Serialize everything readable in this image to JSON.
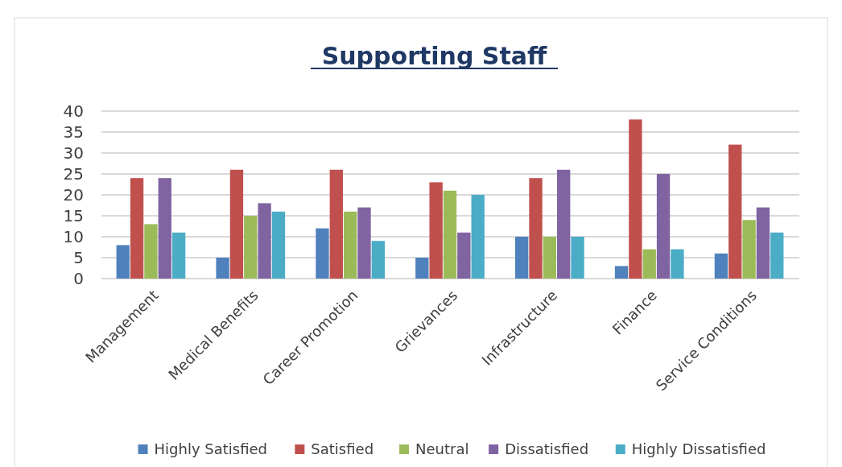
{
  "chart_data": {
    "type": "bar",
    "title": "Supporting Staff",
    "categories": [
      "Management",
      "Medical Benefits",
      "Career Promotion",
      "Grievances",
      "Infrastructure",
      "Finance",
      "Service Conditions"
    ],
    "series": [
      {
        "name": "Highly Satisfied",
        "color": "#4f81bd",
        "values": [
          8,
          5,
          12,
          5,
          10,
          3,
          6
        ]
      },
      {
        "name": "Satisfied",
        "color": "#c0504d",
        "values": [
          24,
          26,
          26,
          23,
          24,
          38,
          32
        ]
      },
      {
        "name": "Neutral",
        "color": "#9bbb59",
        "values": [
          13,
          15,
          16,
          21,
          10,
          7,
          14
        ]
      },
      {
        "name": "Dissatisfied",
        "color": "#8064a2",
        "values": [
          24,
          18,
          17,
          11,
          26,
          25,
          17
        ]
      },
      {
        "name": "Highly Dissatisfied",
        "color": "#4bacc6",
        "values": [
          11,
          16,
          9,
          20,
          10,
          7,
          11
        ]
      }
    ],
    "ylim": [
      0,
      40
    ],
    "yticks": [
      0,
      5,
      10,
      15,
      20,
      25,
      30,
      35,
      40
    ],
    "grid": "y",
    "legend": "bottom"
  }
}
